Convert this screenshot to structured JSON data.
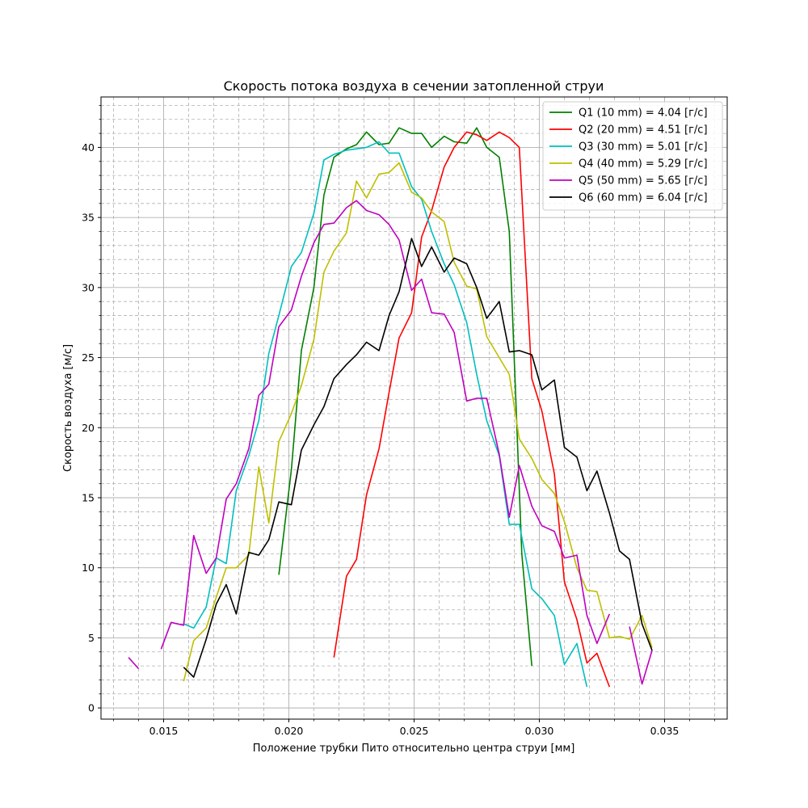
{
  "chart_data": {
    "type": "line",
    "title": "Скорость потока воздуха в сечении затопленной струи",
    "xlabel": "Положение трубки Пито относительно центра струи [мм]",
    "ylabel": "Скорость воздуха [м/с]",
    "xlim": [
      0.0125,
      0.0375
    ],
    "ylim": [
      -0.8,
      43.6
    ],
    "xticks": [
      0.015,
      0.02,
      0.025,
      0.03,
      0.035
    ],
    "xtick_labels": [
      "0.015",
      "0.020",
      "0.025",
      "0.030",
      "0.035"
    ],
    "yticks": [
      0,
      5,
      10,
      15,
      20,
      25,
      30,
      35,
      40
    ],
    "ytick_labels": [
      "0",
      "5",
      "10",
      "15",
      "20",
      "25",
      "30",
      "35",
      "40"
    ],
    "grid": true,
    "minor_grid": true,
    "legend_position": "top-right",
    "series": [
      {
        "name": "Q1 (10 mm) = 4.04 [г/с]",
        "color": "#008000",
        "points": [
          [
            0.0196,
            9.5
          ],
          [
            0.0201,
            17.0
          ],
          [
            0.0205,
            25.5
          ],
          [
            0.021,
            30.0
          ],
          [
            0.0214,
            36.6
          ],
          [
            0.0218,
            39.3
          ],
          [
            0.0223,
            39.9
          ],
          [
            0.0227,
            40.2
          ],
          [
            0.0231,
            41.1
          ],
          [
            0.0236,
            40.2
          ],
          [
            0.024,
            40.3
          ],
          [
            0.0244,
            41.4
          ],
          [
            0.0249,
            41.0
          ],
          [
            0.0253,
            41.0
          ],
          [
            0.0257,
            40.0
          ],
          [
            0.0262,
            40.8
          ],
          [
            0.0266,
            40.4
          ],
          [
            0.0271,
            40.3
          ],
          [
            0.0275,
            41.4
          ],
          [
            0.0279,
            40.0
          ],
          [
            0.0284,
            39.3
          ],
          [
            0.0288,
            34.0
          ],
          [
            0.0293,
            11.0
          ],
          [
            0.0297,
            3.0
          ]
        ]
      },
      {
        "name": "Q2 (20 mm) = 4.51 [г/с]",
        "color": "#ff0000",
        "points": [
          [
            0.0218,
            3.6
          ],
          [
            0.0223,
            9.4
          ],
          [
            0.0227,
            10.6
          ],
          [
            0.0231,
            15.2
          ],
          [
            0.0236,
            18.5
          ],
          [
            0.024,
            22.5
          ],
          [
            0.0244,
            26.4
          ],
          [
            0.0249,
            28.2
          ],
          [
            0.0253,
            33.6
          ],
          [
            0.0257,
            35.5
          ],
          [
            0.0262,
            38.6
          ],
          [
            0.0266,
            40.0
          ],
          [
            0.0271,
            41.1
          ],
          [
            0.0275,
            40.9
          ],
          [
            0.0279,
            40.5
          ],
          [
            0.0284,
            41.1
          ],
          [
            0.0288,
            40.7
          ],
          [
            0.0292,
            40.0
          ],
          [
            0.0297,
            23.5
          ],
          [
            0.0301,
            21.2
          ],
          [
            0.0306,
            16.7
          ],
          [
            0.031,
            9.0
          ],
          [
            0.0315,
            6.3
          ],
          [
            0.0319,
            3.2
          ],
          [
            0.0323,
            3.9
          ],
          [
            0.0328,
            1.5
          ]
        ]
      },
      {
        "name": "Q3 (30 mm) = 5.01 [г/с]",
        "color": "#00bfbf",
        "points": [
          [
            0.0158,
            6.0
          ],
          [
            0.0162,
            5.7
          ],
          [
            0.0167,
            7.2
          ],
          [
            0.0171,
            10.7
          ],
          [
            0.0175,
            10.3
          ],
          [
            0.0179,
            15.5
          ],
          [
            0.0184,
            18.0
          ],
          [
            0.0188,
            20.5
          ],
          [
            0.0192,
            25.3
          ],
          [
            0.0196,
            28.0
          ],
          [
            0.0201,
            31.5
          ],
          [
            0.0205,
            32.5
          ],
          [
            0.021,
            35.3
          ],
          [
            0.0214,
            39.1
          ],
          [
            0.0218,
            39.5
          ],
          [
            0.0223,
            39.8
          ],
          [
            0.0227,
            39.9
          ],
          [
            0.0231,
            40.0
          ],
          [
            0.0236,
            40.4
          ],
          [
            0.024,
            39.6
          ],
          [
            0.0244,
            39.6
          ],
          [
            0.0249,
            37.2
          ],
          [
            0.0253,
            36.3
          ],
          [
            0.0257,
            34.0
          ],
          [
            0.0262,
            31.7
          ],
          [
            0.0266,
            30.2
          ],
          [
            0.0271,
            27.5
          ],
          [
            0.0275,
            23.8
          ],
          [
            0.0279,
            20.5
          ],
          [
            0.0284,
            18.0
          ],
          [
            0.0288,
            13.1
          ],
          [
            0.0292,
            13.1
          ],
          [
            0.0297,
            8.5
          ],
          [
            0.0301,
            7.8
          ],
          [
            0.0306,
            6.6
          ],
          [
            0.031,
            3.1
          ],
          [
            0.0315,
            4.6
          ],
          [
            0.0319,
            1.5
          ]
        ]
      },
      {
        "name": "Q4 (40 mm) = 5.29 [г/с]",
        "color": "#bfbf00",
        "points": [
          [
            0.0158,
            1.9
          ],
          [
            0.0162,
            4.8
          ],
          [
            0.0167,
            5.7
          ],
          [
            0.0171,
            7.9
          ],
          [
            0.0175,
            10.0
          ],
          [
            0.0179,
            10.0
          ],
          [
            0.0184,
            10.9
          ],
          [
            0.0188,
            17.2
          ],
          [
            0.0192,
            13.2
          ],
          [
            0.0196,
            19.0
          ],
          [
            0.0201,
            21.0
          ],
          [
            0.0205,
            23.0
          ],
          [
            0.021,
            26.3
          ],
          [
            0.0214,
            31.1
          ],
          [
            0.0218,
            32.6
          ],
          [
            0.0223,
            33.9
          ],
          [
            0.0227,
            37.6
          ],
          [
            0.0231,
            36.4
          ],
          [
            0.0236,
            38.1
          ],
          [
            0.024,
            38.2
          ],
          [
            0.0244,
            38.9
          ],
          [
            0.0249,
            36.8
          ],
          [
            0.0253,
            36.4
          ],
          [
            0.0257,
            35.4
          ],
          [
            0.0262,
            34.7
          ],
          [
            0.0266,
            31.8
          ],
          [
            0.0271,
            30.1
          ],
          [
            0.0275,
            29.9
          ],
          [
            0.0279,
            26.5
          ],
          [
            0.0284,
            25.0
          ],
          [
            0.0288,
            23.8
          ],
          [
            0.0292,
            19.2
          ],
          [
            0.0297,
            17.8
          ],
          [
            0.0301,
            16.3
          ],
          [
            0.0306,
            15.3
          ],
          [
            0.031,
            13.3
          ],
          [
            0.0315,
            10.0
          ],
          [
            0.0319,
            8.4
          ],
          [
            0.0323,
            8.3
          ],
          [
            0.0328,
            5.0
          ],
          [
            0.0332,
            5.1
          ],
          [
            0.0336,
            4.9
          ],
          [
            0.0341,
            6.6
          ],
          [
            0.0345,
            4.3
          ]
        ]
      },
      {
        "name": "Q5 (50 mm) = 5.65 [г/с]",
        "color": "#bf00bf",
        "points": [
          [
            0.0136,
            3.6
          ],
          [
            0.014,
            2.8
          ],
          null,
          [
            0.0149,
            4.2
          ],
          [
            0.0153,
            6.1
          ],
          [
            0.0158,
            5.9
          ],
          [
            0.0162,
            12.3
          ],
          [
            0.0167,
            9.6
          ],
          [
            0.0171,
            10.7
          ],
          [
            0.0175,
            14.9
          ],
          [
            0.0179,
            16.0
          ],
          [
            0.0184,
            18.5
          ],
          [
            0.0188,
            22.3
          ],
          [
            0.0192,
            23.1
          ],
          [
            0.0196,
            27.2
          ],
          [
            0.0201,
            28.4
          ],
          [
            0.0205,
            30.8
          ],
          [
            0.021,
            33.2
          ],
          [
            0.0214,
            34.5
          ],
          [
            0.0218,
            34.6
          ],
          [
            0.0223,
            35.7
          ],
          [
            0.0227,
            36.2
          ],
          [
            0.0231,
            35.5
          ],
          [
            0.0236,
            35.2
          ],
          [
            0.024,
            34.5
          ],
          [
            0.0244,
            33.4
          ],
          [
            0.0249,
            29.8
          ],
          [
            0.0253,
            30.6
          ],
          [
            0.0257,
            28.2
          ],
          [
            0.0262,
            28.1
          ],
          [
            0.0266,
            26.8
          ],
          [
            0.0271,
            21.9
          ],
          [
            0.0275,
            22.1
          ],
          [
            0.0279,
            22.1
          ],
          [
            0.0284,
            18.1
          ],
          [
            0.0288,
            13.6
          ],
          [
            0.0292,
            17.3
          ],
          [
            0.0297,
            14.4
          ],
          [
            0.0301,
            13.0
          ],
          [
            0.0306,
            12.6
          ],
          [
            0.031,
            10.7
          ],
          [
            0.0315,
            10.9
          ],
          [
            0.0319,
            6.6
          ],
          [
            0.0323,
            4.6
          ],
          [
            0.0328,
            6.7
          ],
          null,
          [
            0.0336,
            5.8
          ],
          [
            0.0341,
            1.7
          ],
          [
            0.0345,
            4.1
          ]
        ]
      },
      {
        "name": "Q6 (60 mm) = 6.04 [г/с]",
        "color": "#000000",
        "points": [
          [
            0.0158,
            2.9
          ],
          [
            0.0162,
            2.2
          ],
          [
            0.0167,
            4.9
          ],
          [
            0.0171,
            7.4
          ],
          [
            0.0175,
            8.8
          ],
          [
            0.0179,
            6.7
          ],
          [
            0.0184,
            11.1
          ],
          [
            0.0188,
            10.9
          ],
          [
            0.0192,
            12.0
          ],
          [
            0.0196,
            14.7
          ],
          [
            0.0201,
            14.5
          ],
          [
            0.0205,
            18.4
          ],
          [
            0.021,
            20.2
          ],
          [
            0.0214,
            21.5
          ],
          [
            0.0218,
            23.5
          ],
          [
            0.0223,
            24.5
          ],
          [
            0.0227,
            25.2
          ],
          [
            0.0231,
            26.1
          ],
          [
            0.0236,
            25.5
          ],
          [
            0.024,
            28.0
          ],
          [
            0.0244,
            29.7
          ],
          [
            0.0249,
            33.5
          ],
          [
            0.0253,
            31.5
          ],
          [
            0.0257,
            32.9
          ],
          [
            0.0262,
            31.1
          ],
          [
            0.0266,
            32.1
          ],
          [
            0.0271,
            31.7
          ],
          [
            0.0275,
            30.0
          ],
          [
            0.0279,
            27.8
          ],
          [
            0.0284,
            29.0
          ],
          [
            0.0288,
            25.4
          ],
          [
            0.0292,
            25.5
          ],
          [
            0.0297,
            25.2
          ],
          [
            0.0301,
            22.7
          ],
          [
            0.0306,
            23.4
          ],
          [
            0.031,
            18.6
          ],
          [
            0.0315,
            17.9
          ],
          [
            0.0319,
            15.5
          ],
          [
            0.0323,
            16.9
          ],
          [
            0.0328,
            13.9
          ],
          [
            0.0332,
            11.2
          ],
          [
            0.0336,
            10.6
          ],
          [
            0.0341,
            6.0
          ],
          [
            0.0345,
            4.1
          ]
        ]
      }
    ]
  }
}
